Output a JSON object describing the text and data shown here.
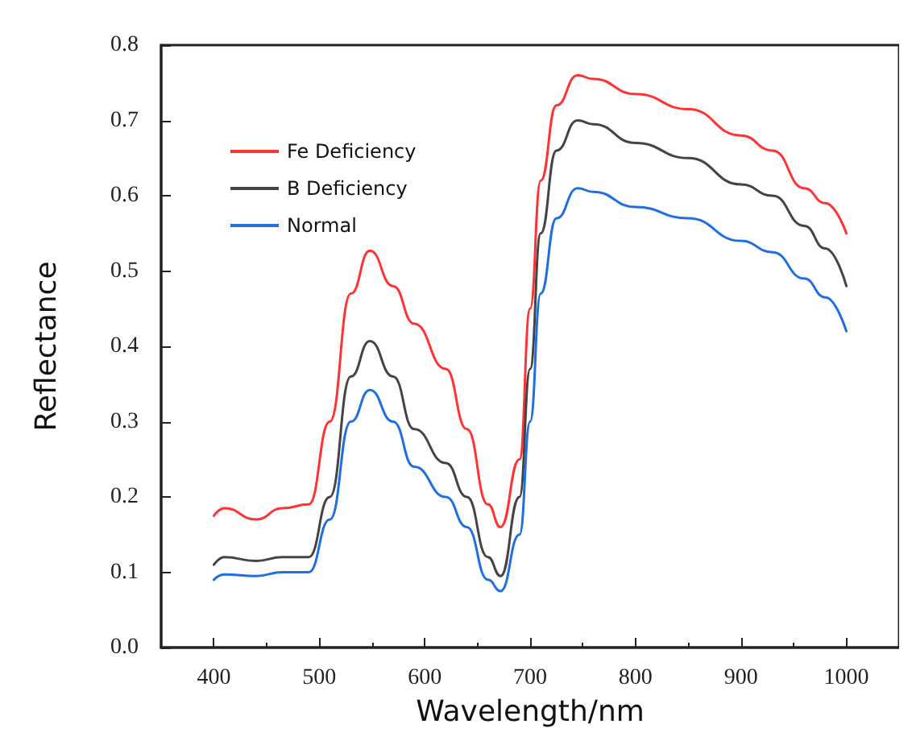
{
  "chart_data": {
    "type": "line",
    "xlabel": "Wavelength/nm",
    "ylabel": "Reflectance",
    "x": [
      400,
      410,
      440,
      465,
      490,
      510,
      530,
      548,
      570,
      590,
      620,
      640,
      660,
      672,
      690,
      700,
      710,
      725,
      745,
      760,
      800,
      850,
      900,
      930,
      960,
      980,
      1000
    ],
    "series": [
      {
        "name": "Fe Deficiency",
        "color": "#ff3333",
        "values": [
          0.175,
          0.185,
          0.17,
          0.185,
          0.19,
          0.3,
          0.47,
          0.527,
          0.48,
          0.43,
          0.37,
          0.29,
          0.19,
          0.16,
          0.25,
          0.45,
          0.62,
          0.72,
          0.76,
          0.755,
          0.735,
          0.715,
          0.68,
          0.66,
          0.61,
          0.59,
          0.55
        ]
      },
      {
        "name": "B Deficiency",
        "color": "#444444",
        "values": [
          0.11,
          0.12,
          0.115,
          0.12,
          0.12,
          0.2,
          0.36,
          0.407,
          0.36,
          0.29,
          0.245,
          0.2,
          0.12,
          0.095,
          0.2,
          0.37,
          0.55,
          0.66,
          0.7,
          0.695,
          0.67,
          0.65,
          0.615,
          0.6,
          0.56,
          0.53,
          0.48
        ]
      },
      {
        "name": "Normal",
        "color": "#1f6fe0",
        "values": [
          0.09,
          0.097,
          0.095,
          0.1,
          0.1,
          0.17,
          0.3,
          0.342,
          0.3,
          0.24,
          0.2,
          0.16,
          0.09,
          0.075,
          0.15,
          0.3,
          0.47,
          0.57,
          0.61,
          0.605,
          0.585,
          0.57,
          0.54,
          0.525,
          0.49,
          0.465,
          0.42
        ]
      }
    ],
    "xlim": [
      350,
      1050
    ],
    "xticks": [
      400,
      500,
      600,
      700,
      800,
      900,
      1000
    ],
    "ylim": [
      0,
      0.8
    ],
    "yticks": [
      {
        "value": 0,
        "label": "0.0"
      },
      {
        "value": 0.1,
        "label": "0.1"
      },
      {
        "value": 0.2,
        "label": "0.2"
      },
      {
        "value": 0.3,
        "label": "0.3"
      },
      {
        "value": 0.4,
        "label": "0.4"
      },
      {
        "value": 0.5,
        "label": "0.5"
      },
      {
        "value": 0.6,
        "label": "0.6"
      },
      {
        "value": 0.7,
        "label": "0.7"
      },
      {
        "value": 0.8,
        "label": "0.8"
      }
    ],
    "legend": "top left",
    "grid": false,
    "marker": "none",
    "line_style": "solid"
  }
}
